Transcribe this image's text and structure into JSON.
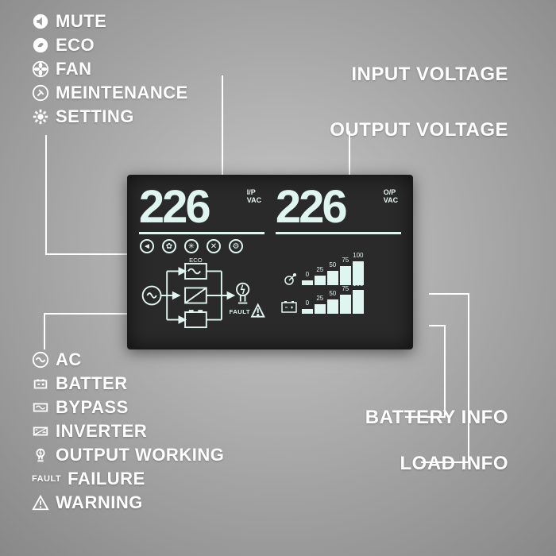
{
  "legend_top": [
    {
      "icon": "mute",
      "label": "MUTE"
    },
    {
      "icon": "eco",
      "label": "ECO"
    },
    {
      "icon": "fan",
      "label": "FAN"
    },
    {
      "icon": "maint",
      "label": "MEINTENANCE"
    },
    {
      "icon": "setting",
      "label": "SETTING"
    }
  ],
  "legend_mid": [
    {
      "icon": "ac",
      "label": "AC"
    },
    {
      "icon": "battery",
      "label": "BATTER"
    },
    {
      "icon": "bypass",
      "label": "BYPASS"
    },
    {
      "icon": "inverter",
      "label": "INVERTER"
    },
    {
      "icon": "output",
      "label": "OUTPUT WORKING"
    },
    {
      "icon": "fault",
      "label": "FAILURE"
    },
    {
      "icon": "warning",
      "label": "WARNING"
    }
  ],
  "labels": {
    "input_voltage": "INPUT VOLTAGE",
    "output_voltage": "OUTPUT VOLTAGE",
    "battery_info": "BATTERY INFO",
    "load_info": "LOAD INFO"
  },
  "lcd": {
    "input_value": "226",
    "input_unit_1": "I/P",
    "input_unit_2": "VAC",
    "output_value": "226",
    "output_unit_1": "O/P",
    "output_unit_2": "VAC",
    "eco_label": "ECO",
    "fault_label": "FAULT",
    "status_icons": [
      "mute",
      "eco",
      "fan",
      "maint",
      "setting"
    ],
    "meter_scale": [
      "0",
      "25",
      "50",
      "75",
      "100"
    ],
    "meter_heights": [
      6,
      12,
      18,
      24,
      30
    ]
  },
  "colors": {
    "bg_center": "#c8c8c8",
    "bg_edge": "#888888",
    "text": "#ffffff",
    "lcd_bg": "#2a2a2a",
    "lcd_fg": "#dff5f0"
  }
}
